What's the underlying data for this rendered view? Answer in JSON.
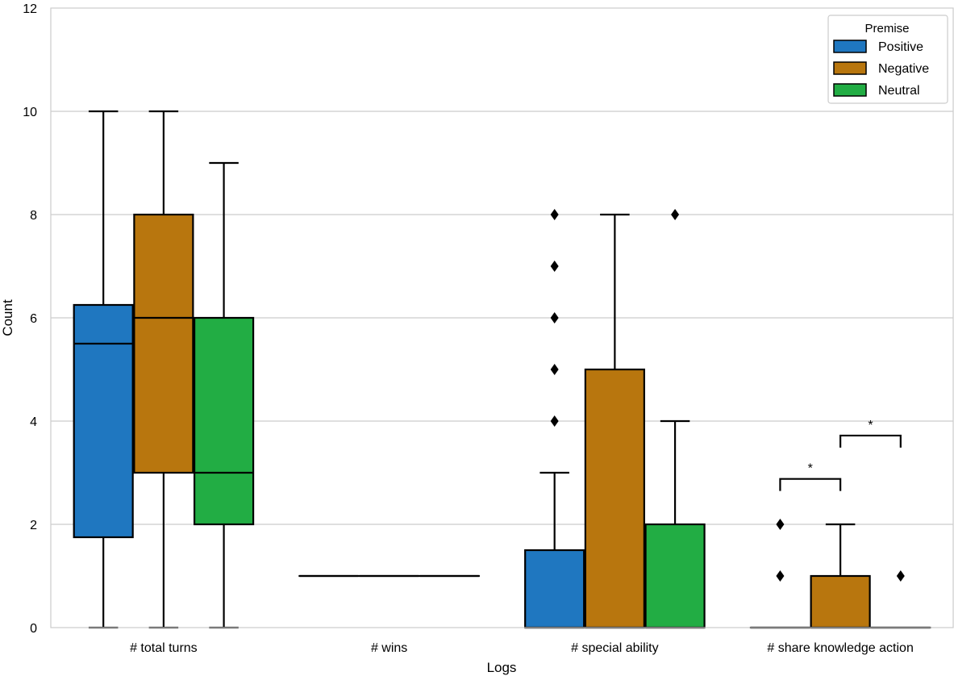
{
  "chart_data": {
    "type": "box",
    "xlabel": "Logs",
    "ylabel": "Count",
    "ylim": [
      0,
      12
    ],
    "yticks": [
      "0",
      "2",
      "4",
      "6",
      "8",
      "10",
      "12"
    ],
    "grid": "horizontal",
    "categories": [
      "# total turns",
      "# wins",
      "# special ability",
      "# share knowledge action"
    ],
    "legend": {
      "title": "Premise",
      "position": "top-right"
    },
    "series": [
      {
        "name": "Positive",
        "color": "#1f77c0",
        "boxes": [
          {
            "min": 0,
            "q1": 1.75,
            "median": 5.5,
            "q3": 6.25,
            "max": 10,
            "outliers": []
          },
          {
            "min": 1,
            "q1": 1,
            "median": 1,
            "q3": 1,
            "max": 1,
            "outliers": []
          },
          {
            "min": 0,
            "q1": 0,
            "median": 0,
            "q3": 1.5,
            "max": 3,
            "outliers": [
              4,
              5,
              6,
              7,
              8
            ]
          },
          {
            "min": 0,
            "q1": 0,
            "median": 0,
            "q3": 0,
            "max": 0,
            "outliers": [
              1,
              2
            ]
          }
        ]
      },
      {
        "name": "Negative",
        "color": "#b8760e",
        "boxes": [
          {
            "min": 0,
            "q1": 3,
            "median": 6,
            "q3": 8,
            "max": 10,
            "outliers": []
          },
          {
            "min": 1,
            "q1": 1,
            "median": 1,
            "q3": 1,
            "max": 1,
            "outliers": []
          },
          {
            "min": 0,
            "q1": 0,
            "median": 0,
            "q3": 5,
            "max": 8,
            "outliers": []
          },
          {
            "min": 0,
            "q1": 0,
            "median": 0,
            "q3": 1,
            "max": 2,
            "outliers": []
          }
        ]
      },
      {
        "name": "Neutral",
        "color": "#22ad44",
        "boxes": [
          {
            "min": 0,
            "q1": 2,
            "median": 3,
            "q3": 6,
            "max": 9,
            "outliers": []
          },
          {
            "min": 1,
            "q1": 1,
            "median": 1,
            "q3": 1,
            "max": 1,
            "outliers": []
          },
          {
            "min": 0,
            "q1": 0,
            "median": 0,
            "q3": 2,
            "max": 4,
            "outliers": [
              8
            ]
          },
          {
            "min": 0,
            "q1": 0,
            "median": 0,
            "q3": 0,
            "max": 0,
            "outliers": [
              1
            ]
          }
        ]
      }
    ],
    "annotations": [
      {
        "category": 3,
        "from_series": 0,
        "to_series": 1,
        "text": "*",
        "y": 2.88
      },
      {
        "category": 3,
        "from_series": 1,
        "to_series": 2,
        "text": "*",
        "y": 3.72
      }
    ]
  }
}
